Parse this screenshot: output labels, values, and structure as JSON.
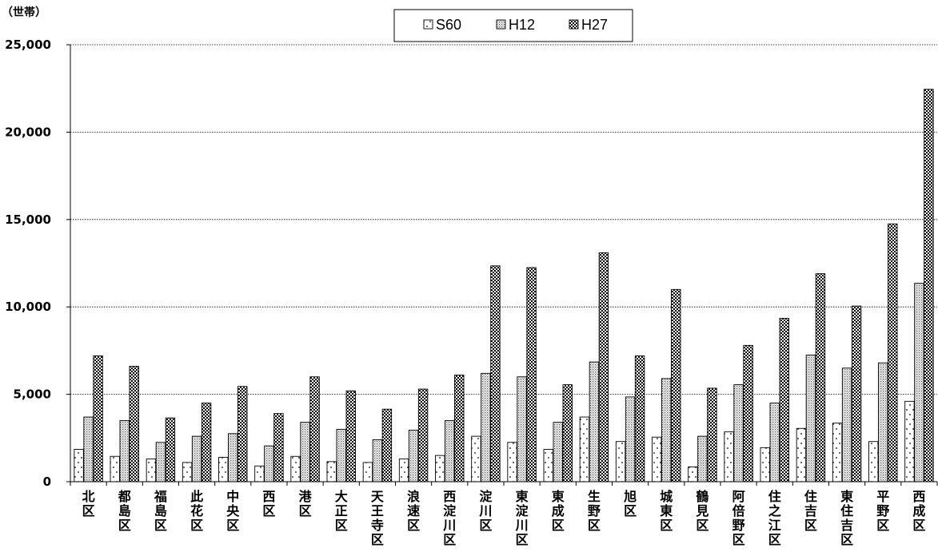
{
  "chart_data": {
    "type": "bar",
    "unit_label": "（世帯）",
    "ylim": [
      0,
      25000
    ],
    "yticks": [
      0,
      5000,
      10000,
      15000,
      20000,
      25000
    ],
    "ytick_labels": [
      "0",
      "5,000",
      "10,000",
      "15,000",
      "20,000",
      "25,000"
    ],
    "grid": true,
    "legend_position": "top-center",
    "categories": [
      "北区",
      "都島区",
      "福島区",
      "此花区",
      "中央区",
      "西区",
      "港区",
      "大正区",
      "天王寺区",
      "浪速区",
      "西淀川区",
      "淀川区",
      "東淀川区",
      "東成区",
      "生野区",
      "旭区",
      "城東区",
      "鶴見区",
      "阿倍野区",
      "住之江区",
      "住吉区",
      "東住吉区",
      "平野区",
      "西成区"
    ],
    "series": [
      {
        "name": "S60",
        "pattern": "sparse-dots",
        "values": [
          1850,
          1450,
          1300,
          1100,
          1400,
          900,
          1450,
          1150,
          1100,
          1300,
          1500,
          2600,
          2250,
          1850,
          3700,
          2300,
          2550,
          850,
          2850,
          1950,
          3050,
          3350,
          2300,
          4600
        ]
      },
      {
        "name": "H12",
        "pattern": "dense-dots",
        "values": [
          3700,
          3500,
          2250,
          2600,
          2750,
          2050,
          3400,
          3000,
          2400,
          2950,
          3500,
          6200,
          6000,
          3400,
          6850,
          4850,
          5900,
          2600,
          5550,
          4500,
          7250,
          6500,
          6800,
          11350
        ]
      },
      {
        "name": "H27",
        "pattern": "checker",
        "values": [
          7200,
          6600,
          3650,
          4500,
          5450,
          3900,
          6000,
          5200,
          4150,
          5300,
          6100,
          12350,
          12250,
          5550,
          13100,
          7200,
          11000,
          5350,
          7800,
          9350,
          11900,
          10050,
          14750,
          22450
        ]
      }
    ]
  }
}
